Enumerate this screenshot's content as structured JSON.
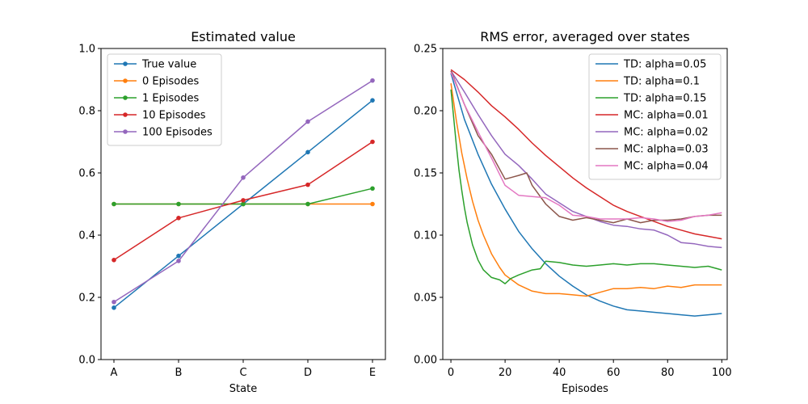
{
  "chart_data": [
    {
      "type": "line",
      "title": "Estimated value",
      "xlabel": "State",
      "ylabel": "",
      "categories": [
        "A",
        "B",
        "C",
        "D",
        "E"
      ],
      "ylim": [
        0,
        1.0
      ],
      "yticks": [
        "0.0",
        "0.2",
        "0.4",
        "0.6",
        "0.8",
        "1.0"
      ],
      "legend_position": "top-left",
      "grid": false,
      "series": [
        {
          "name": "True value",
          "color": "#1f77b4",
          "values": [
            0.1667,
            0.3333,
            0.5,
            0.6667,
            0.8333
          ]
        },
        {
          "name": "0 Episodes",
          "color": "#ff7f0e",
          "values": [
            0.5,
            0.5,
            0.5,
            0.5,
            0.5
          ]
        },
        {
          "name": "1 Episodes",
          "color": "#2ca02c",
          "values": [
            0.5,
            0.5,
            0.5,
            0.5,
            0.55
          ]
        },
        {
          "name": "10 Episodes",
          "color": "#d62728",
          "values": [
            0.32,
            0.455,
            0.512,
            0.562,
            0.7
          ]
        },
        {
          "name": "100 Episodes",
          "color": "#9467bd",
          "values": [
            0.185,
            0.317,
            0.585,
            0.765,
            0.897
          ]
        }
      ]
    },
    {
      "type": "line",
      "title": "RMS error, averaged over states",
      "xlabel": "Episodes",
      "ylabel": "",
      "xlim": [
        -3,
        102
      ],
      "xticks": [
        0,
        20,
        40,
        60,
        80,
        100
      ],
      "ylim": [
        0,
        0.25
      ],
      "yticks": [
        "0.00",
        "0.05",
        "0.10",
        "0.15",
        "0.20",
        "0.25"
      ],
      "legend_position": "top-right",
      "grid": false,
      "series": [
        {
          "name": "TD: alpha=0.05",
          "color": "#1f77b4",
          "x": [
            0,
            5,
            10,
            15,
            20,
            25,
            30,
            35,
            40,
            45,
            50,
            55,
            60,
            65,
            70,
            75,
            80,
            85,
            90,
            95,
            100
          ],
          "values": [
            0.23,
            0.193,
            0.165,
            0.141,
            0.121,
            0.103,
            0.089,
            0.077,
            0.067,
            0.059,
            0.052,
            0.047,
            0.043,
            0.04,
            0.039,
            0.038,
            0.037,
            0.036,
            0.035,
            0.036,
            0.037
          ]
        },
        {
          "name": "TD: alpha=0.1",
          "color": "#ff7f0e",
          "x": [
            0,
            2,
            4,
            6,
            8,
            10,
            12,
            15,
            18,
            20,
            25,
            30,
            35,
            40,
            45,
            50,
            55,
            60,
            65,
            70,
            75,
            80,
            85,
            90,
            95,
            100
          ],
          "values": [
            0.222,
            0.192,
            0.166,
            0.145,
            0.127,
            0.112,
            0.1,
            0.085,
            0.074,
            0.068,
            0.06,
            0.055,
            0.053,
            0.053,
            0.052,
            0.051,
            0.054,
            0.057,
            0.057,
            0.058,
            0.057,
            0.059,
            0.058,
            0.06,
            0.06,
            0.06
          ]
        },
        {
          "name": "TD: alpha=0.15",
          "color": "#2ca02c",
          "x": [
            0,
            1,
            2,
            3,
            4,
            5,
            6,
            8,
            10,
            12,
            15,
            18,
            20,
            22,
            25,
            30,
            33,
            35,
            40,
            45,
            50,
            55,
            60,
            65,
            70,
            75,
            80,
            85,
            90,
            95,
            100
          ],
          "values": [
            0.217,
            0.195,
            0.172,
            0.152,
            0.136,
            0.122,
            0.11,
            0.092,
            0.08,
            0.072,
            0.066,
            0.064,
            0.061,
            0.065,
            0.068,
            0.072,
            0.073,
            0.079,
            0.078,
            0.076,
            0.075,
            0.076,
            0.077,
            0.076,
            0.077,
            0.077,
            0.076,
            0.075,
            0.074,
            0.075,
            0.072
          ]
        },
        {
          "name": "MC: alpha=0.01",
          "color": "#d62728",
          "x": [
            0,
            5,
            10,
            15,
            20,
            25,
            30,
            35,
            40,
            45,
            50,
            55,
            60,
            65,
            70,
            75,
            80,
            85,
            90,
            95,
            100
          ],
          "values": [
            0.233,
            0.225,
            0.215,
            0.204,
            0.195,
            0.185,
            0.174,
            0.164,
            0.155,
            0.146,
            0.138,
            0.131,
            0.124,
            0.119,
            0.115,
            0.111,
            0.107,
            0.104,
            0.101,
            0.099,
            0.097
          ]
        },
        {
          "name": "MC: alpha=0.02",
          "color": "#9467bd",
          "x": [
            0,
            5,
            10,
            15,
            20,
            25,
            30,
            35,
            40,
            45,
            50,
            55,
            60,
            65,
            70,
            75,
            80,
            85,
            90,
            95,
            100
          ],
          "values": [
            0.232,
            0.215,
            0.197,
            0.18,
            0.165,
            0.156,
            0.145,
            0.133,
            0.126,
            0.119,
            0.115,
            0.111,
            0.108,
            0.107,
            0.105,
            0.104,
            0.1,
            0.094,
            0.093,
            0.091,
            0.09
          ]
        },
        {
          "name": "MC: alpha=0.03",
          "color": "#8c564b",
          "x": [
            0,
            5,
            10,
            15,
            20,
            25,
            28,
            30,
            35,
            40,
            45,
            50,
            55,
            60,
            65,
            70,
            75,
            80,
            85,
            90,
            95,
            100
          ],
          "values": [
            0.232,
            0.205,
            0.18,
            0.165,
            0.145,
            0.148,
            0.15,
            0.14,
            0.125,
            0.115,
            0.112,
            0.114,
            0.112,
            0.11,
            0.113,
            0.11,
            0.112,
            0.112,
            0.113,
            0.115,
            0.116,
            0.116
          ]
        },
        {
          "name": "MC: alpha=0.04",
          "color": "#e377c2",
          "x": [
            0,
            5,
            10,
            15,
            20,
            25,
            30,
            35,
            40,
            45,
            50,
            55,
            60,
            65,
            70,
            75,
            80,
            85,
            90,
            95,
            100
          ],
          "values": [
            0.231,
            0.205,
            0.183,
            0.162,
            0.14,
            0.132,
            0.131,
            0.13,
            0.124,
            0.116,
            0.115,
            0.113,
            0.113,
            0.113,
            0.114,
            0.113,
            0.111,
            0.112,
            0.115,
            0.116,
            0.118
          ]
        }
      ]
    }
  ]
}
